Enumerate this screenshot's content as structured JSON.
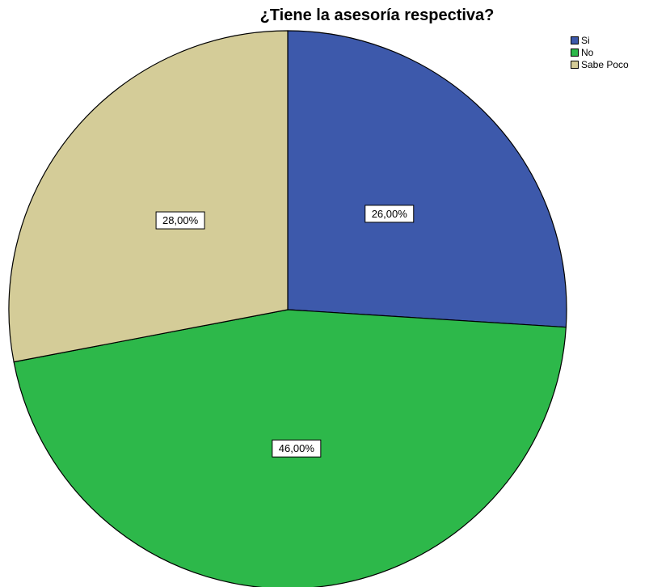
{
  "chart_data": {
    "type": "pie",
    "title": "¿Tiene la asesoría respectiva?",
    "categories": [
      "Si",
      "No",
      "Sabe Poco"
    ],
    "values": [
      26,
      46,
      28
    ],
    "labels": [
      "26,00%",
      "46,00%",
      "28,00%"
    ],
    "colors": [
      "#3d59ab",
      "#2db84a",
      "#d4cc98"
    ],
    "legend_position": "top-right",
    "start_angle": "12 o'clock",
    "direction": "clockwise"
  }
}
